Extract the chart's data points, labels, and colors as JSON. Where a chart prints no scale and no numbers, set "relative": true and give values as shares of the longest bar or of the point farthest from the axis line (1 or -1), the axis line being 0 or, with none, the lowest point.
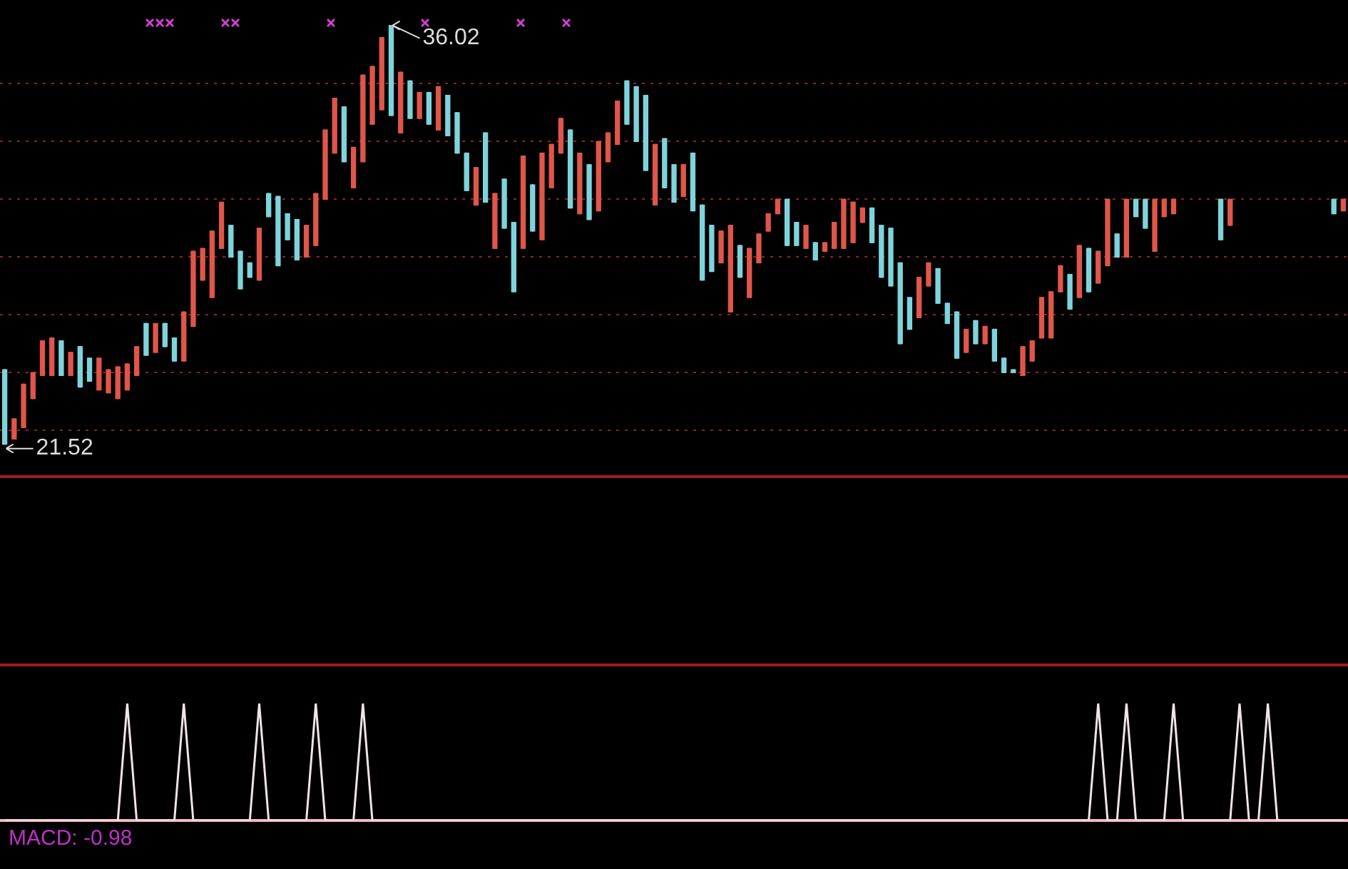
{
  "chart_data": [
    {
      "type": "candlestick",
      "categories": [
        null,
        null,
        null,
        null,
        null,
        null,
        null,
        null,
        null,
        null,
        null,
        null,
        null,
        null,
        null,
        null,
        null,
        null,
        null,
        null,
        null,
        null,
        null,
        null,
        null,
        null,
        null,
        null,
        null,
        null,
        null,
        null,
        null,
        null,
        null,
        null,
        null,
        null,
        null,
        null,
        null,
        null,
        null,
        null,
        null,
        null,
        null,
        null,
        null,
        null,
        null,
        null,
        null,
        null,
        null,
        null,
        null,
        null,
        null,
        null,
        null,
        null,
        null,
        null,
        null,
        null,
        null,
        null,
        null,
        null,
        null,
        null,
        null,
        null,
        null,
        null,
        null,
        null,
        null,
        null,
        null,
        null,
        null,
        null,
        null,
        null,
        null,
        null,
        null,
        null,
        null,
        null,
        null,
        null,
        null,
        null,
        null,
        null,
        null,
        null,
        null,
        null,
        null,
        null,
        null,
        null,
        null,
        null,
        null,
        null,
        null,
        null,
        null,
        null,
        null,
        null,
        null,
        null,
        null,
        null,
        null,
        null,
        null,
        null,
        null,
        null,
        null,
        null,
        null,
        null,
        null,
        null,
        null,
        null,
        null,
        null,
        null,
        null,
        null,
        null,
        null,
        null,
        null
      ],
      "ohlc": [
        [
          24.1,
          24.1,
          21.52,
          21.52
        ],
        [
          21.7,
          22.4,
          21.7,
          22.4
        ],
        [
          22.1,
          23.6,
          22.1,
          23.6
        ],
        [
          23.1,
          24.0,
          23.1,
          24.0
        ],
        [
          23.9,
          25.1,
          23.9,
          25.1
        ],
        [
          23.9,
          25.2,
          23.9,
          25.2
        ],
        [
          25.1,
          25.1,
          23.9,
          23.9
        ],
        [
          23.9,
          24.7,
          23.9,
          24.7
        ],
        [
          24.9,
          24.9,
          23.5,
          23.5
        ],
        [
          24.5,
          24.5,
          23.7,
          23.7
        ],
        [
          23.4,
          24.5,
          23.4,
          24.5
        ],
        [
          23.3,
          24.1,
          23.3,
          24.1
        ],
        [
          23.1,
          24.2,
          23.1,
          24.2
        ],
        [
          23.4,
          24.3,
          23.4,
          24.3
        ],
        [
          23.9,
          24.9,
          23.9,
          24.9
        ],
        [
          25.7,
          25.7,
          24.6,
          24.6
        ],
        [
          24.7,
          25.7,
          24.7,
          25.7
        ],
        [
          25.7,
          25.7,
          24.9,
          24.9
        ],
        [
          25.2,
          25.2,
          24.4,
          24.4
        ],
        [
          24.4,
          26.1,
          24.4,
          26.1
        ],
        [
          25.6,
          28.2,
          25.6,
          28.2
        ],
        [
          27.2,
          28.3,
          27.2,
          28.3
        ],
        [
          26.6,
          28.9,
          26.6,
          28.9
        ],
        [
          28.3,
          29.9,
          28.3,
          29.9
        ],
        [
          29.1,
          29.1,
          28.0,
          28.0
        ],
        [
          28.2,
          28.2,
          26.9,
          26.9
        ],
        [
          27.8,
          27.8,
          27.3,
          27.3
        ],
        [
          27.2,
          29.0,
          27.2,
          29.0
        ],
        [
          30.2,
          30.2,
          29.4,
          29.4
        ],
        [
          30.1,
          30.1,
          27.7,
          27.7
        ],
        [
          29.5,
          29.5,
          28.6,
          28.6
        ],
        [
          29.3,
          29.3,
          27.9,
          27.9
        ],
        [
          28.0,
          29.1,
          28.0,
          29.1
        ],
        [
          28.4,
          30.2,
          28.4,
          30.2
        ],
        [
          30.0,
          32.4,
          30.0,
          32.4
        ],
        [
          31.6,
          33.5,
          31.6,
          33.5
        ],
        [
          33.2,
          33.2,
          31.3,
          31.3
        ],
        [
          30.4,
          31.8,
          30.4,
          31.8
        ],
        [
          31.3,
          34.3,
          31.3,
          34.3
        ],
        [
          32.6,
          34.6,
          32.6,
          34.6
        ],
        [
          33.1,
          35.6,
          33.1,
          35.6
        ],
        [
          36.02,
          36.02,
          32.9,
          32.9
        ],
        [
          32.3,
          34.4,
          32.3,
          34.4
        ],
        [
          34.1,
          34.1,
          32.8,
          32.8
        ],
        [
          32.8,
          33.7,
          32.8,
          33.7
        ],
        [
          33.7,
          33.7,
          32.6,
          32.6
        ],
        [
          32.4,
          33.9,
          32.4,
          33.9
        ],
        [
          33.6,
          33.6,
          32.2,
          32.2
        ],
        [
          33.0,
          33.0,
          31.6,
          31.6
        ],
        [
          31.6,
          31.6,
          30.3,
          30.3
        ],
        [
          29.8,
          31.1,
          29.8,
          31.1
        ],
        [
          32.3,
          32.3,
          29.9,
          29.9
        ],
        [
          28.3,
          30.2,
          28.3,
          30.2
        ],
        [
          30.7,
          30.7,
          29.0,
          29.0
        ],
        [
          29.2,
          29.2,
          26.8,
          26.8
        ],
        [
          28.3,
          31.5,
          28.3,
          31.5
        ],
        [
          30.5,
          30.5,
          28.9,
          28.9
        ],
        [
          28.6,
          31.6,
          28.6,
          31.6
        ],
        [
          30.4,
          31.9,
          30.4,
          31.9
        ],
        [
          31.6,
          32.8,
          31.6,
          32.8
        ],
        [
          32.4,
          32.4,
          29.7,
          29.7
        ],
        [
          29.5,
          31.6,
          29.5,
          31.6
        ],
        [
          31.2,
          31.2,
          29.3,
          29.3
        ],
        [
          29.6,
          32.0,
          29.6,
          32.0
        ],
        [
          31.3,
          32.3,
          31.3,
          32.3
        ],
        [
          31.9,
          33.4,
          31.9,
          33.4
        ],
        [
          34.1,
          34.1,
          32.6,
          32.6
        ],
        [
          33.9,
          33.9,
          32.0,
          32.0
        ],
        [
          33.6,
          33.6,
          31.0,
          31.0
        ],
        [
          29.8,
          31.9,
          29.8,
          31.9
        ],
        [
          32.1,
          32.1,
          30.4,
          30.4
        ],
        [
          31.2,
          31.2,
          29.9,
          29.9
        ],
        [
          30.1,
          31.2,
          30.1,
          31.2
        ],
        [
          31.6,
          31.6,
          29.6,
          29.6
        ],
        [
          29.8,
          29.8,
          27.2,
          27.2
        ],
        [
          29.1,
          29.1,
          27.5,
          27.5
        ],
        [
          27.8,
          28.9,
          27.8,
          28.9
        ],
        [
          26.1,
          29.1,
          26.1,
          29.1
        ],
        [
          28.4,
          28.4,
          27.3,
          27.3
        ],
        [
          26.6,
          28.3,
          26.6,
          28.3
        ],
        [
          27.8,
          28.8,
          27.8,
          28.8
        ],
        [
          28.9,
          29.5,
          28.9,
          29.5
        ],
        [
          29.5,
          30.0,
          29.5,
          30.0
        ],
        [
          30.0,
          30.0,
          28.4,
          28.4
        ],
        [
          29.2,
          29.2,
          28.4,
          28.4
        ],
        [
          28.3,
          29.1,
          28.3,
          29.1
        ],
        [
          28.5,
          28.5,
          27.9,
          27.9
        ],
        [
          28.2,
          28.5,
          28.2,
          28.5
        ],
        [
          28.3,
          29.2,
          28.3,
          29.2
        ],
        [
          28.3,
          30.0,
          28.3,
          30.0
        ],
        [
          28.5,
          29.9,
          28.5,
          29.9
        ],
        [
          29.2,
          29.7,
          29.2,
          29.7
        ],
        [
          29.7,
          29.7,
          28.5,
          28.5
        ],
        [
          29.1,
          29.1,
          27.3,
          27.3
        ],
        [
          29.0,
          29.0,
          27.0,
          27.0
        ],
        [
          27.8,
          27.8,
          25.0,
          25.0
        ],
        [
          26.6,
          26.6,
          25.5,
          25.5
        ],
        [
          25.9,
          27.3,
          25.9,
          27.3
        ],
        [
          27.0,
          27.8,
          27.0,
          27.8
        ],
        [
          27.6,
          27.6,
          26.4,
          26.4
        ],
        [
          26.4,
          26.4,
          25.7,
          25.7
        ],
        [
          26.1,
          26.1,
          24.5,
          24.5
        ],
        [
          24.7,
          25.5,
          24.7,
          25.5
        ],
        [
          25.8,
          25.8,
          25.0,
          25.0
        ],
        [
          25.0,
          25.6,
          25.0,
          25.6
        ],
        [
          25.5,
          25.5,
          24.4,
          24.4
        ],
        [
          24.5,
          24.5,
          24.0,
          24.0
        ],
        [
          24.1,
          24.1,
          24.0,
          24.0
        ],
        [
          23.9,
          24.9,
          23.9,
          24.9
        ],
        [
          24.4,
          25.1,
          24.4,
          25.1
        ],
        [
          25.2,
          26.6,
          25.2,
          26.6
        ],
        [
          25.2,
          26.8,
          25.2,
          26.8
        ],
        [
          26.8,
          27.7,
          26.8,
          27.7
        ],
        [
          27.4,
          27.4,
          26.2,
          26.2
        ],
        [
          26.6,
          28.4,
          26.6,
          28.4
        ],
        [
          28.3,
          28.3,
          26.8,
          26.8
        ],
        [
          27.1,
          28.2,
          27.1,
          28.2
        ],
        [
          27.7,
          30.0,
          27.7,
          30.0
        ],
        [
          28.8,
          28.8,
          28.0,
          28.0
        ],
        [
          28.0,
          30.0,
          28.0,
          30.0
        ],
        [
          30.0,
          30.0,
          29.4,
          29.4
        ],
        [
          30.0,
          30.0,
          29.0,
          29.0
        ],
        [
          28.2,
          30.0,
          28.2,
          30.0
        ],
        [
          29.4,
          30.0,
          29.4,
          30.0
        ],
        [
          29.5,
          30.0,
          29.5,
          30.0
        ],
        null,
        null,
        null,
        null,
        [
          30.0,
          30.0,
          28.6,
          28.6
        ],
        [
          29.1,
          30.0,
          29.1,
          30.0
        ],
        null,
        null,
        null,
        null,
        null,
        null,
        null,
        null,
        null,
        null,
        [
          30.0,
          30.0,
          29.5,
          29.5
        ],
        [
          29.6,
          30.0,
          29.6,
          30.0
        ]
      ],
      "colors": [
        "#7fd4dc",
        "#e0564a",
        "#e0564a",
        "#e0564a",
        "#e0564a",
        "#e0564a",
        "#7fd4dc",
        "#e0564a",
        "#7fd4dc",
        "#7fd4dc",
        "#e0564a",
        "#e0564a",
        "#e0564a",
        "#e0564a",
        "#e0564a",
        "#7fd4dc",
        "#e0564a",
        "#7fd4dc",
        "#7fd4dc",
        "#e0564a",
        "#e0564a",
        "#e0564a",
        "#e0564a",
        "#e0564a",
        "#7fd4dc",
        "#7fd4dc",
        "#7fd4dc",
        "#e0564a",
        "#7fd4dc",
        "#7fd4dc",
        "#7fd4dc",
        "#7fd4dc",
        "#e0564a",
        "#e0564a",
        "#e0564a",
        "#e0564a",
        "#7fd4dc",
        "#e0564a",
        "#e0564a",
        "#e0564a",
        "#e0564a",
        "#7fd4dc",
        "#e0564a",
        "#7fd4dc",
        "#e0564a",
        "#7fd4dc",
        "#e0564a",
        "#7fd4dc",
        "#7fd4dc",
        "#7fd4dc",
        "#e0564a",
        "#7fd4dc",
        "#e0564a",
        "#7fd4dc",
        "#7fd4dc",
        "#e0564a",
        "#7fd4dc",
        "#e0564a",
        "#e0564a",
        "#e0564a",
        "#7fd4dc",
        "#e0564a",
        "#7fd4dc",
        "#e0564a",
        "#e0564a",
        "#e0564a",
        "#7fd4dc",
        "#7fd4dc",
        "#7fd4dc",
        "#e0564a",
        "#7fd4dc",
        "#7fd4dc",
        "#e0564a",
        "#7fd4dc",
        "#7fd4dc",
        "#7fd4dc",
        "#e0564a",
        "#e0564a",
        "#7fd4dc",
        "#e0564a",
        "#e0564a",
        "#e0564a",
        "#e0564a",
        "#7fd4dc",
        "#7fd4dc",
        "#e0564a",
        "#7fd4dc",
        "#e0564a",
        "#e0564a",
        "#e0564a",
        "#e0564a",
        "#e0564a",
        "#7fd4dc",
        "#7fd4dc",
        "#7fd4dc",
        "#7fd4dc",
        "#7fd4dc",
        "#e0564a",
        "#e0564a",
        "#7fd4dc",
        "#7fd4dc",
        "#7fd4dc",
        "#e0564a",
        "#7fd4dc",
        "#e0564a",
        "#7fd4dc",
        "#7fd4dc",
        "#7fd4dc",
        "#e0564a",
        "#e0564a",
        "#e0564a",
        "#e0564a",
        "#e0564a",
        "#7fd4dc",
        "#e0564a",
        "#7fd4dc",
        "#e0564a",
        "#e0564a",
        "#7fd4dc",
        "#e0564a",
        "#7fd4dc",
        "#7fd4dc",
        "#e0564a",
        "#e0564a",
        "#e0564a",
        null,
        null,
        null,
        null,
        "#7fd4dc",
        "#e0564a",
        null,
        null,
        null,
        null,
        null,
        null,
        null,
        null,
        null,
        null,
        "#7fd4dc",
        "#e0564a"
      ],
      "ylim": [
        20.4,
        36.9
      ],
      "yticks": [
        {
          "value": 22,
          "label": null
        },
        {
          "value": 24,
          "label": null
        },
        {
          "value": 26,
          "label": null
        },
        {
          "value": 28,
          "label": null
        },
        {
          "value": 30,
          "label": null
        },
        {
          "value": 32,
          "label": null
        },
        {
          "value": 34,
          "label": null
        }
      ],
      "grid": "y",
      "tick_labels": false,
      "legend": false,
      "annotations": [
        "36.02",
        "21.52"
      ]
    },
    {
      "type": "line",
      "relative": true,
      "categories": [
        null,
        null,
        null,
        null,
        null,
        null,
        null,
        null,
        null,
        null,
        null,
        null,
        null,
        null,
        null,
        null,
        null,
        null,
        null,
        null,
        null,
        null,
        null,
        null,
        null,
        null,
        null,
        null,
        null,
        null,
        null,
        null,
        null,
        null,
        null,
        null,
        null,
        null,
        null,
        null,
        null,
        null,
        null,
        null,
        null,
        null,
        null,
        null,
        null,
        null,
        null,
        null,
        null,
        null,
        null,
        null,
        null,
        null,
        null,
        null,
        null,
        null,
        null,
        null,
        null,
        null,
        null,
        null,
        null,
        null,
        null,
        null,
        null,
        null,
        null,
        null,
        null,
        null,
        null,
        null,
        null,
        null,
        null,
        null,
        null,
        null,
        null,
        null,
        null,
        null,
        null,
        null,
        null,
        null,
        null,
        null,
        null,
        null,
        null,
        null,
        null,
        null,
        null,
        null,
        null,
        null,
        null,
        null,
        null,
        null,
        null,
        null,
        null,
        null,
        null,
        null,
        null,
        null,
        null,
        null,
        null,
        null,
        null,
        null,
        null,
        null,
        null,
        null,
        null,
        null,
        null,
        null,
        null,
        null,
        null,
        null,
        null,
        null,
        null,
        null,
        null,
        null,
        null
      ],
      "series": [
        {
          "color": "#f0e4e8",
          "values": [
            0,
            0,
            0,
            0,
            0,
            0,
            0,
            0,
            0,
            0,
            0,
            0,
            0,
            1,
            0,
            0,
            0,
            0,
            0,
            1,
            0,
            0,
            0,
            0,
            0,
            0,
            0,
            1,
            0,
            0,
            0,
            0,
            0,
            1,
            0,
            0,
            0,
            0,
            1,
            0,
            0,
            0,
            0,
            0,
            0,
            0,
            0,
            0,
            0,
            0,
            0,
            0,
            0,
            0,
            0,
            0,
            0,
            0,
            0,
            0,
            0,
            0,
            0,
            0,
            0,
            0,
            0,
            0,
            0,
            0,
            0,
            0,
            0,
            0,
            0,
            0,
            0,
            0,
            0,
            0,
            0,
            0,
            0,
            0,
            0,
            0,
            0,
            0,
            0,
            0,
            0,
            0,
            0,
            0,
            0,
            0,
            0,
            0,
            0,
            0,
            0,
            0,
            0,
            0,
            0,
            0,
            0,
            0,
            0,
            0,
            0,
            0,
            0,
            0,
            0,
            0,
            1,
            0,
            0,
            1,
            0,
            0,
            0,
            0,
            1,
            0,
            0,
            0,
            0,
            0,
            0,
            1,
            0,
            0,
            1,
            0,
            0,
            0,
            0,
            0,
            0,
            0,
            0
          ]
        }
      ],
      "annotations": [
        "MACD: -0.98"
      ]
    }
  ]
}
